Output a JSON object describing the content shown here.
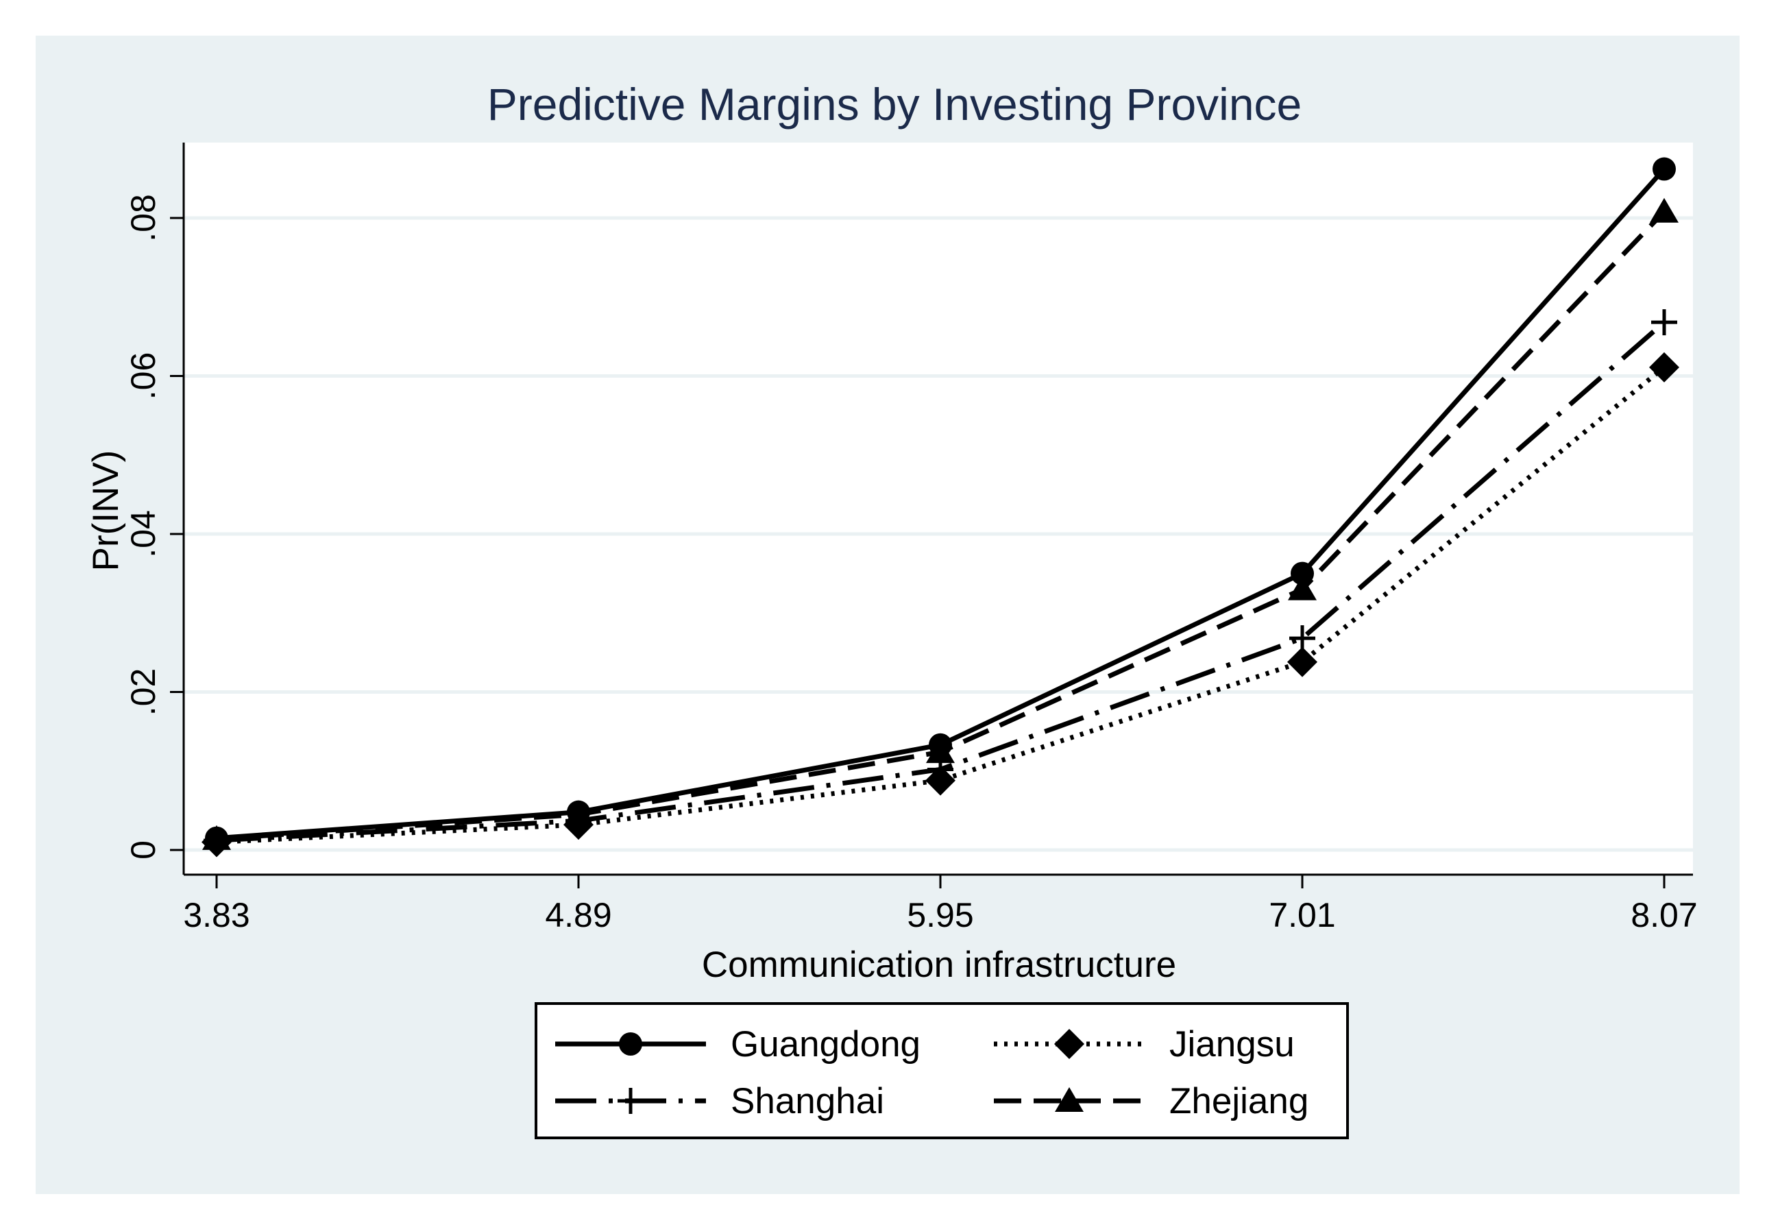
{
  "chart_data": {
    "type": "line",
    "title": "Predictive Margins by Investing Province",
    "xlabel": "Communication infrastructure",
    "ylabel": "Pr(INV)",
    "x": [
      3.83,
      4.89,
      5.95,
      7.01,
      8.07
    ],
    "x_tick_labels": [
      "3.83",
      "4.89",
      "5.95",
      "7.01",
      "8.07"
    ],
    "y_ticks": [
      0,
      0.02,
      0.04,
      0.06,
      0.08
    ],
    "y_tick_labels": [
      "0",
      ".02",
      ".04",
      ".06",
      ".08"
    ],
    "ylim": [
      0,
      0.09
    ],
    "grid": true,
    "legend_position": "bottom",
    "series": [
      {
        "name": "Guangdong",
        "values": [
          0.0015,
          0.0048,
          0.0133,
          0.035,
          0.0862
        ],
        "marker": "circle",
        "dash": "solid"
      },
      {
        "name": "Jiangsu",
        "values": [
          0.001,
          0.0032,
          0.0088,
          0.0238,
          0.0611
        ],
        "marker": "diamond",
        "dash": "dotted"
      },
      {
        "name": "Shanghai",
        "values": [
          0.0012,
          0.0037,
          0.0102,
          0.0268,
          0.0668
        ],
        "marker": "plus",
        "dash": "longdashdot"
      },
      {
        "name": "Zhejiang",
        "values": [
          0.0014,
          0.0045,
          0.0124,
          0.033,
          0.0808
        ],
        "marker": "triangle",
        "dash": "dashed"
      }
    ],
    "colors": {
      "background": "#eaf1f3",
      "plot_region": "#ffffff",
      "gridline": "#eaf1f3",
      "title": "#1b2a4a",
      "series": "#000000"
    }
  }
}
